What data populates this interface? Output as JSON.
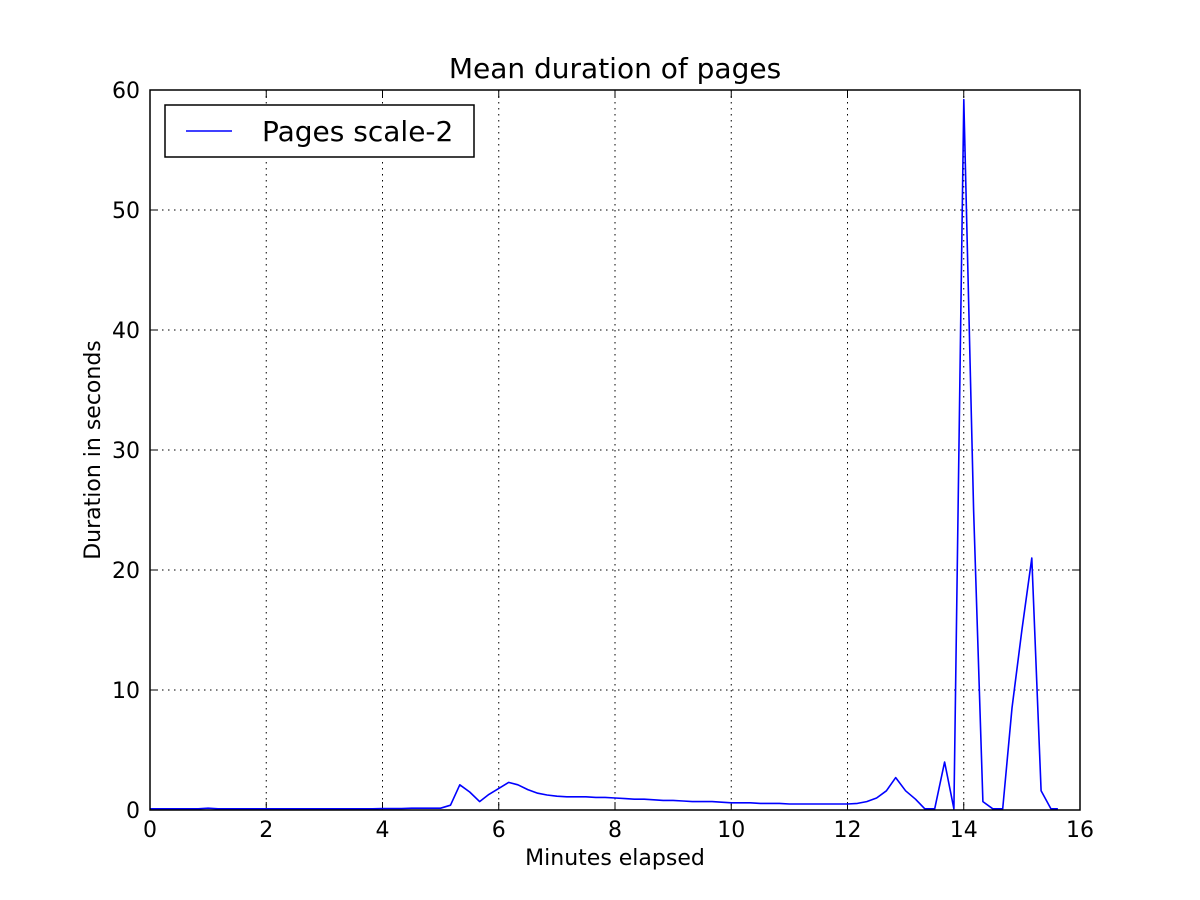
{
  "chart_data": {
    "type": "line",
    "title": "Mean duration of pages",
    "xlabel": "Minutes elapsed",
    "ylabel": "Duration in seconds",
    "xlim": [
      0,
      16
    ],
    "ylim": [
      0,
      60
    ],
    "xticks": [
      "0",
      "2",
      "4",
      "6",
      "8",
      "10",
      "12",
      "14",
      "16"
    ],
    "yticks": [
      "0",
      "10",
      "20",
      "30",
      "40",
      "50",
      "60"
    ],
    "grid": true,
    "legend_position": "top-left",
    "series": [
      {
        "name": "Pages scale-2",
        "color": "#0000ff",
        "x": [
          0,
          0.17,
          0.33,
          0.5,
          0.67,
          0.83,
          1.0,
          1.17,
          1.33,
          1.5,
          1.67,
          1.83,
          2.0,
          2.17,
          2.33,
          2.5,
          2.67,
          2.83,
          3.0,
          3.17,
          3.33,
          3.5,
          3.67,
          3.83,
          4.0,
          4.17,
          4.33,
          4.5,
          4.67,
          4.83,
          5.0,
          5.17,
          5.33,
          5.5,
          5.67,
          5.83,
          6.0,
          6.17,
          6.33,
          6.5,
          6.67,
          6.83,
          7.0,
          7.17,
          7.33,
          7.5,
          7.67,
          7.83,
          8.0,
          8.17,
          8.33,
          8.5,
          8.67,
          8.83,
          9.0,
          9.17,
          9.33,
          9.5,
          9.67,
          9.83,
          10.0,
          10.17,
          10.33,
          10.5,
          10.67,
          10.83,
          11.0,
          11.17,
          11.33,
          11.5,
          11.67,
          11.83,
          12.0,
          12.17,
          12.33,
          12.5,
          12.67,
          12.83,
          13.0,
          13.17,
          13.33,
          13.5,
          13.67,
          13.83,
          14.0,
          14.17,
          14.33,
          14.5,
          14.67,
          14.83,
          15.0,
          15.17,
          15.33,
          15.5,
          15.62
        ],
        "y": [
          0.1,
          0.1,
          0.1,
          0.1,
          0.1,
          0.1,
          0.15,
          0.1,
          0.1,
          0.1,
          0.1,
          0.1,
          0.1,
          0.1,
          0.1,
          0.1,
          0.1,
          0.1,
          0.1,
          0.1,
          0.1,
          0.1,
          0.1,
          0.1,
          0.12,
          0.12,
          0.12,
          0.15,
          0.15,
          0.15,
          0.15,
          0.4,
          2.1,
          1.5,
          0.7,
          1.3,
          1.8,
          2.3,
          2.1,
          1.7,
          1.4,
          1.25,
          1.15,
          1.1,
          1.1,
          1.1,
          1.05,
          1.05,
          1.0,
          0.95,
          0.9,
          0.9,
          0.85,
          0.8,
          0.8,
          0.75,
          0.7,
          0.7,
          0.7,
          0.65,
          0.6,
          0.6,
          0.6,
          0.55,
          0.55,
          0.55,
          0.5,
          0.5,
          0.5,
          0.5,
          0.5,
          0.5,
          0.5,
          0.55,
          0.7,
          1.0,
          1.6,
          2.7,
          1.6,
          0.9,
          0.1,
          0.1,
          4.0,
          0.1,
          59.2,
          25.0,
          0.7,
          0.1,
          0.1,
          8.5,
          15.0,
          21.0,
          1.6,
          0.1,
          0.1
        ]
      }
    ]
  }
}
